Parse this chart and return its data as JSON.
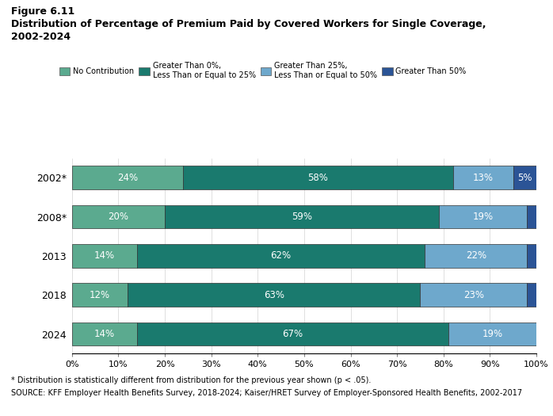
{
  "title_line1": "Figure 6.11",
  "title_line2": "Distribution of Percentage of Premium Paid by Covered Workers for Single Coverage,",
  "title_line3": "2002-2024",
  "years": [
    "2002*",
    "2008*",
    "2013",
    "2018",
    "2024"
  ],
  "categories": [
    "No Contribution",
    "Greater Than 0%,\nLess Than or Equal to 25%",
    "Greater Than 25%,\nLess Than or Equal to 50%",
    "Greater Than 50%"
  ],
  "data": [
    [
      24,
      58,
      13,
      5
    ],
    [
      20,
      59,
      19,
      2
    ],
    [
      14,
      62,
      22,
      2
    ],
    [
      12,
      63,
      23,
      2
    ],
    [
      14,
      67,
      19,
      0
    ]
  ],
  "colors": [
    "#5baa8f",
    "#1a7a6e",
    "#6ea8cc",
    "#2b5496"
  ],
  "bar_height": 0.6,
  "footnote1": "* Distribution is statistically different from distribution for the previous year shown (p < .05).",
  "footnote2": "SOURCE: KFF Employer Health Benefits Survey, 2018-2024; Kaiser/HRET Survey of Employer-Sponsored Health Benefits, 2002-2017",
  "xlabel_ticks": [
    0,
    10,
    20,
    30,
    40,
    50,
    60,
    70,
    80,
    90,
    100
  ],
  "xlabel_labels": [
    "0%",
    "10%",
    "20%",
    "30%",
    "40%",
    "50%",
    "60%",
    "70%",
    "80%",
    "90%",
    "100%"
  ]
}
